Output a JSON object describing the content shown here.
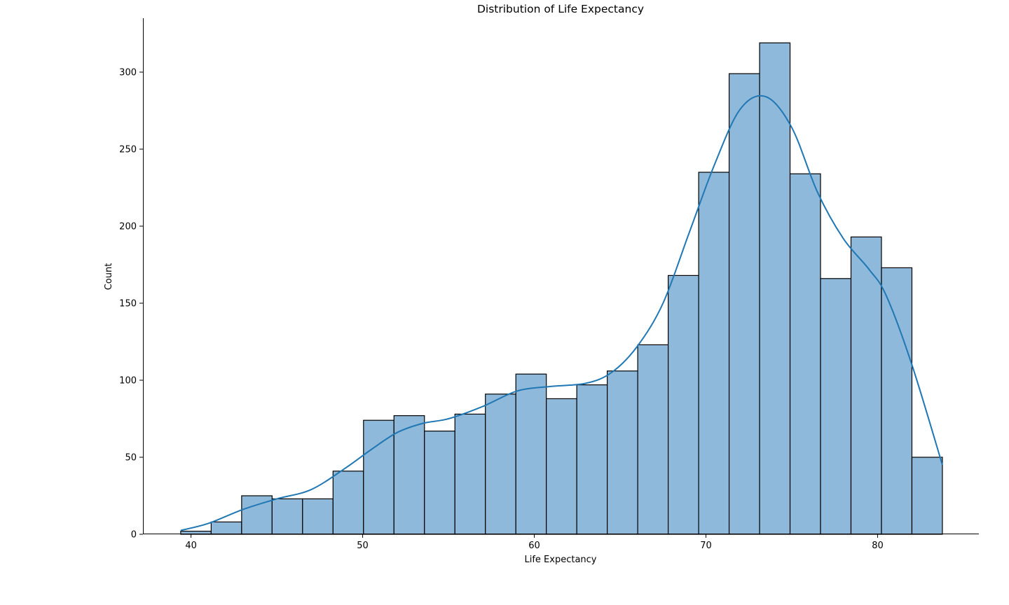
{
  "chart_data": {
    "type": "bar",
    "subtype": "histogram-with-kde",
    "title": "Distribution of Life Expectancy",
    "xlabel": "Life Expectancy",
    "ylabel": "Count",
    "xlim": [
      37.2,
      85.9
    ],
    "ylim": [
      0,
      335
    ],
    "xticks": [
      40,
      50,
      60,
      70,
      80
    ],
    "yticks": [
      0,
      50,
      100,
      150,
      200,
      250,
      300
    ],
    "bin_edges": [
      39.4,
      41.175,
      42.95,
      44.725,
      46.5,
      48.275,
      50.05,
      51.825,
      53.6,
      55.375,
      57.15,
      58.925,
      60.7,
      62.475,
      64.25,
      66.025,
      67.8,
      69.575,
      71.35,
      73.125,
      74.9,
      76.675,
      78.45,
      80.225,
      82.0,
      83.775
    ],
    "values": [
      2,
      8,
      25,
      23,
      23,
      41,
      74,
      77,
      67,
      78,
      91,
      104,
      88,
      97,
      106,
      123,
      168,
      235,
      299,
      319,
      234,
      166,
      193,
      173,
      50
    ],
    "bar_color": "#8fb9da",
    "bar_edge_color": "#000000",
    "kde": {
      "color": "#1f77b4",
      "x": [
        39.4,
        41.0,
        43.0,
        45.0,
        47.0,
        49.0,
        50.5,
        52.0,
        53.5,
        55.0,
        57.0,
        59.0,
        61.0,
        63.0,
        64.5,
        66.0,
        67.5,
        69.0,
        70.5,
        72.0,
        73.5,
        75.0,
        76.5,
        78.0,
        79.5,
        80.5,
        82.0,
        83.775
      ],
      "y": [
        2.5,
        7,
        16,
        23,
        29,
        43,
        55,
        66,
        72,
        75,
        83,
        93,
        96,
        98,
        105,
        122,
        150,
        195,
        240,
        276,
        284,
        264,
        222,
        192,
        172,
        155,
        110,
        45
      ]
    },
    "grid": false,
    "legend": "none"
  }
}
